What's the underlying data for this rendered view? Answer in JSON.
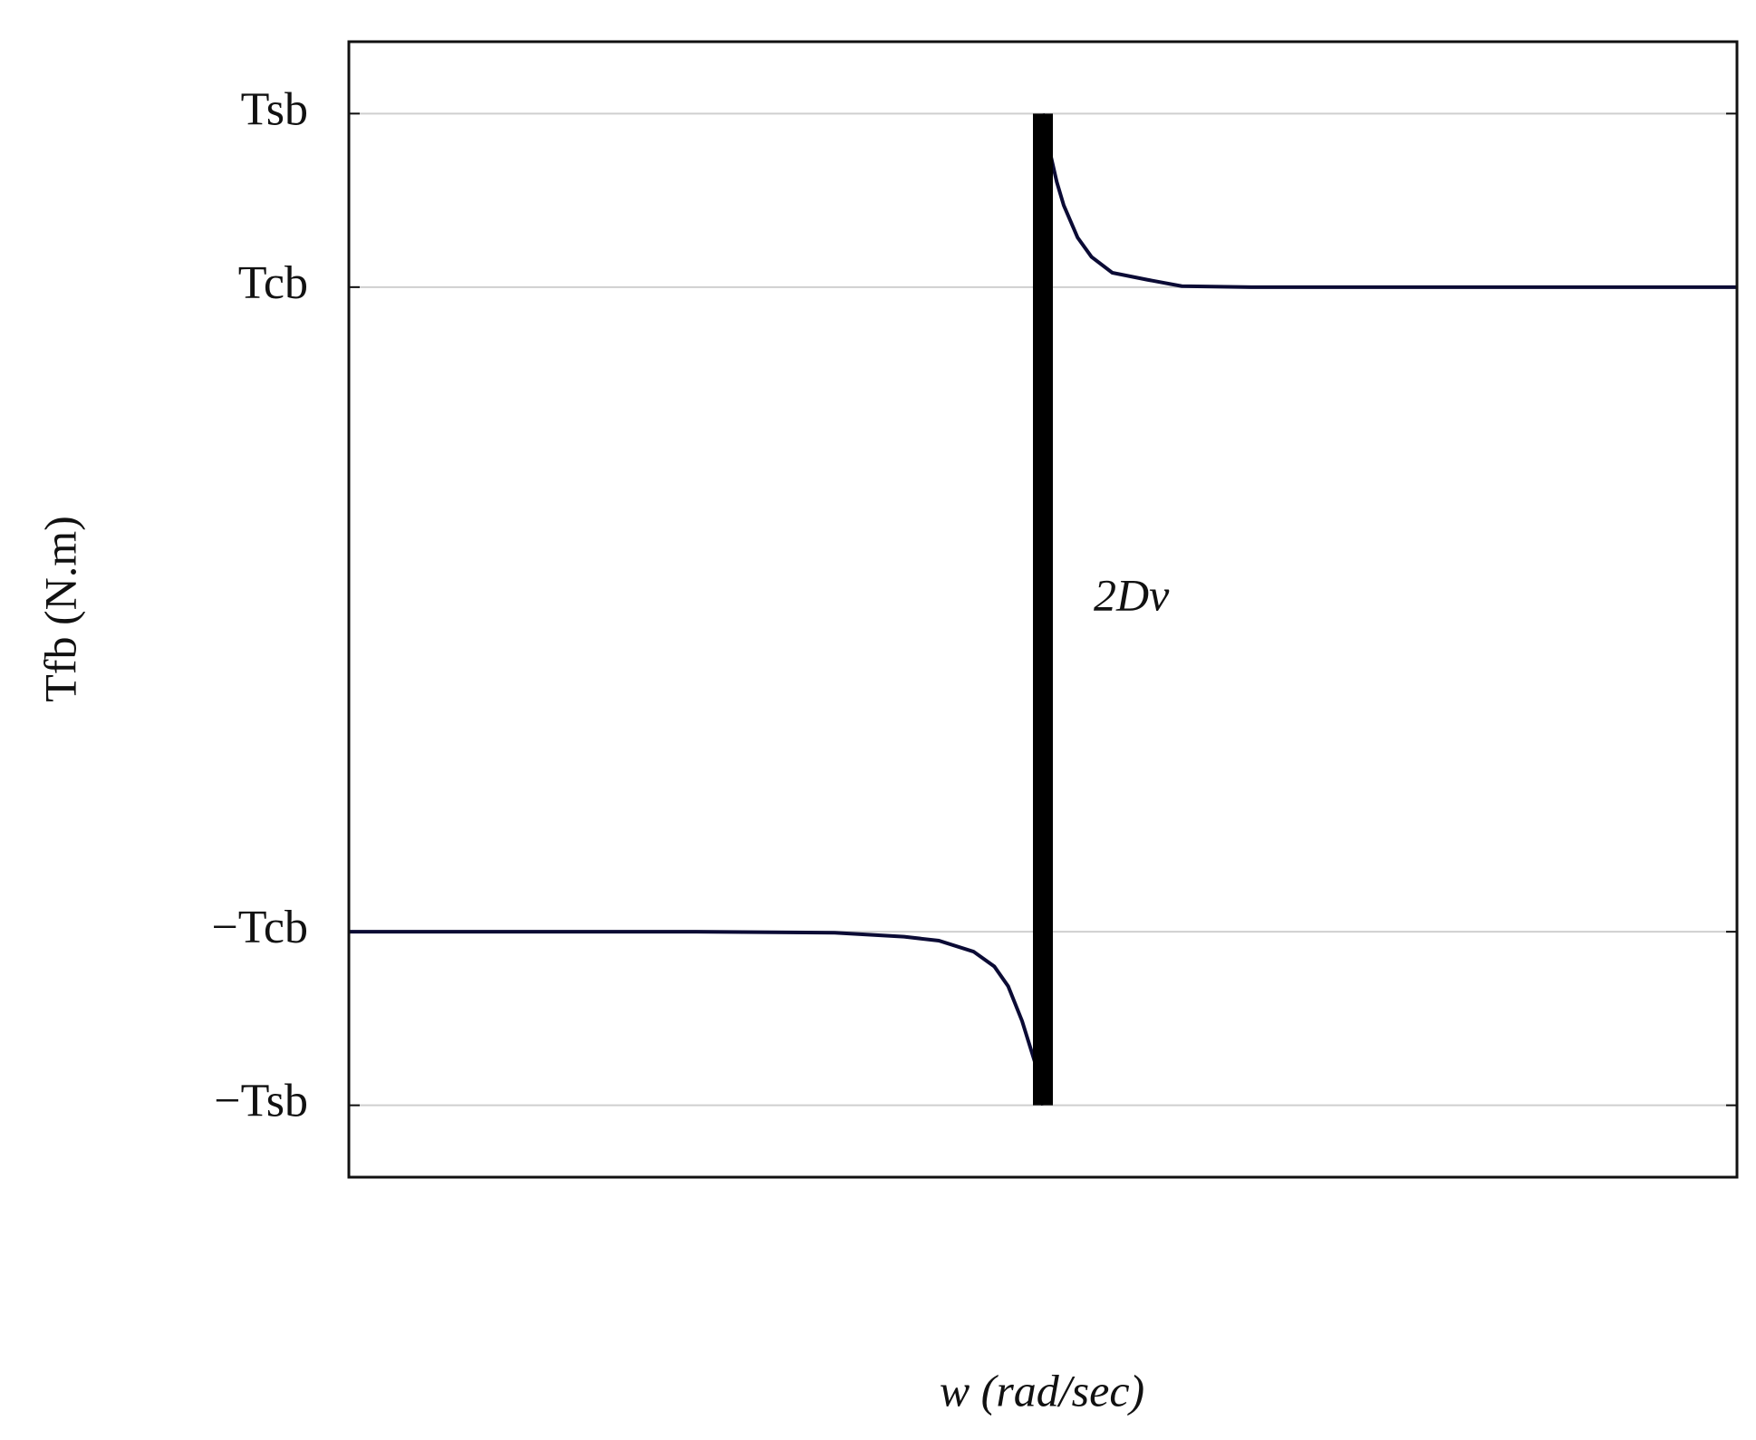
{
  "chart_data": {
    "type": "line",
    "y_label": "Tfb (N.m)",
    "x_label": "w (rad/sec)",
    "annotation": "2Dv",
    "xlim": [
      -1,
      1
    ],
    "ylim": [
      -1.145,
      1.145
    ],
    "yticks": [
      {
        "value": 1,
        "label": "Tsb"
      },
      {
        "value": 0.65,
        "label": "Tcb"
      },
      {
        "value": -0.65,
        "label": "−Tcb"
      },
      {
        "value": -1,
        "label": "−Tsb"
      }
    ],
    "grid": true,
    "series": [
      {
        "color": "#0b0b35",
        "width": 4,
        "x": [
          -1,
          -0.5,
          -0.3,
          -0.2,
          -0.15,
          -0.1,
          -0.07,
          -0.05,
          -0.03,
          -0.01,
          0,
          null,
          0,
          0.01,
          0.02,
          0.03,
          0.05,
          0.07,
          0.1,
          0.15,
          0.2,
          0.3,
          0.5,
          1
        ],
        "values": [
          -0.65,
          -0.65,
          -0.652,
          -0.66,
          -0.668,
          -0.69,
          -0.72,
          -0.76,
          -0.83,
          -0.92,
          -1,
          null,
          1,
          0.923,
          0.862,
          0.815,
          0.75,
          0.711,
          0.679,
          0.665,
          0.652,
          0.65,
          0.65,
          0.65
        ]
      },
      {
        "color": "#000000",
        "width": 22,
        "x": [
          0,
          0
        ],
        "values": [
          -1,
          1
        ]
      }
    ]
  }
}
